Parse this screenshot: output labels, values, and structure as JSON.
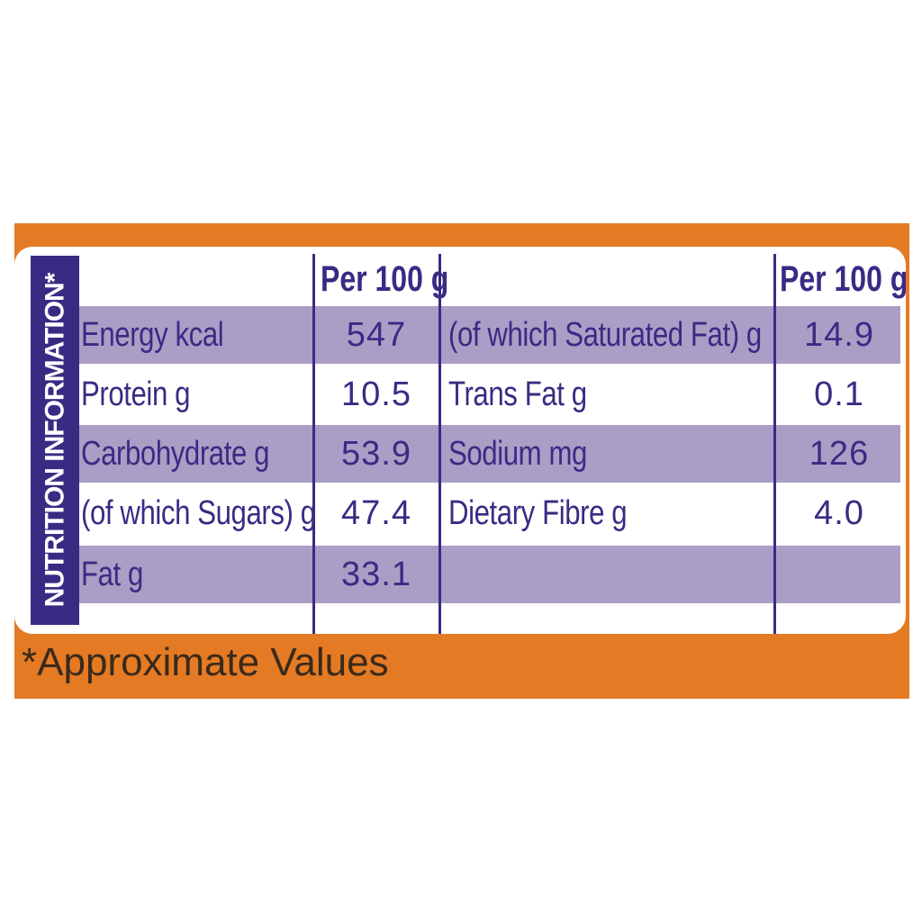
{
  "side_title": "NUTRITION INFORMATION*",
  "header": {
    "per_left": "Per 100 g",
    "per_right": "Per 100 g"
  },
  "left_rows": [
    {
      "label": "Energy kcal",
      "value": "547"
    },
    {
      "label": "Protein g",
      "value": "10.5"
    },
    {
      "label": "Carbohydrate g",
      "value": "53.9"
    },
    {
      "label": "(of which Sugars) g",
      "value": "47.4"
    },
    {
      "label": "Fat g",
      "value": "33.1"
    }
  ],
  "right_rows": [
    {
      "label": "(of which Saturated Fat) g",
      "value": "14.9"
    },
    {
      "label": "Trans Fat g",
      "value": "0.1"
    },
    {
      "label": "Sodium mg",
      "value": "126"
    },
    {
      "label": "Dietary Fibre g",
      "value": "4.0"
    },
    {
      "label": "",
      "value": ""
    }
  ],
  "footnote": "*Approximate Values",
  "colors": {
    "orange": "#e57a24",
    "purple": "#3b2a84",
    "band": "#aa9ec6"
  }
}
